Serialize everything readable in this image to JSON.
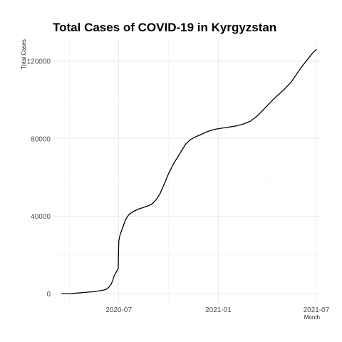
{
  "chart_data": {
    "type": "line",
    "title": "Total Cases of COVID-19 in Kyrgyzstan",
    "xlabel": "Month",
    "ylabel": "Total Cases",
    "x_ticks": [
      "2020-07",
      "2021-01",
      "2021-07"
    ],
    "y_ticks": [
      "0",
      "40000",
      "80000",
      "120000"
    ],
    "xlim": [
      "2020-03-01",
      "2021-07-09"
    ],
    "ylim": [
      -5000,
      131000
    ],
    "grid": true,
    "series": [
      {
        "x": [
          "2020-03-18",
          "2020-04-01",
          "2020-04-15",
          "2020-05-01",
          "2020-05-15",
          "2020-06-01",
          "2020-06-08",
          "2020-06-13",
          "2020-06-17",
          "2020-06-20",
          "2020-06-22",
          "2020-06-25",
          "2020-06-28",
          "2020-06-30",
          "2020-07-01",
          "2020-07-03",
          "2020-07-08",
          "2020-07-14",
          "2020-07-20",
          "2020-07-28",
          "2020-08-06",
          "2020-08-15",
          "2020-08-25",
          "2020-09-01",
          "2020-09-08",
          "2020-09-15",
          "2020-09-22",
          "2020-10-01",
          "2020-10-10",
          "2020-10-20",
          "2020-11-01",
          "2020-11-10",
          "2020-11-20",
          "2020-12-01",
          "2020-12-10",
          "2020-12-20",
          "2021-01-01",
          "2021-01-15",
          "2021-02-01",
          "2021-02-15",
          "2021-03-01",
          "2021-03-15",
          "2021-04-01",
          "2021-04-15",
          "2021-05-01",
          "2021-05-15",
          "2021-06-01",
          "2021-06-15",
          "2021-06-25",
          "2021-07-01"
        ],
        "values": [
          0,
          100,
          400,
          800,
          1100,
          1800,
          2300,
          3500,
          5000,
          7000,
          9000,
          10500,
          12000,
          13000,
          27000,
          30000,
          34000,
          38500,
          41000,
          42500,
          43700,
          44500,
          45500,
          46500,
          48500,
          51500,
          56000,
          62000,
          67000,
          71500,
          77000,
          79500,
          81000,
          82300,
          83500,
          84500,
          85200,
          85800,
          86500,
          87500,
          89000,
          92000,
          97000,
          101000,
          105000,
          109000,
          116000,
          121000,
          124500,
          126000
        ]
      }
    ]
  }
}
